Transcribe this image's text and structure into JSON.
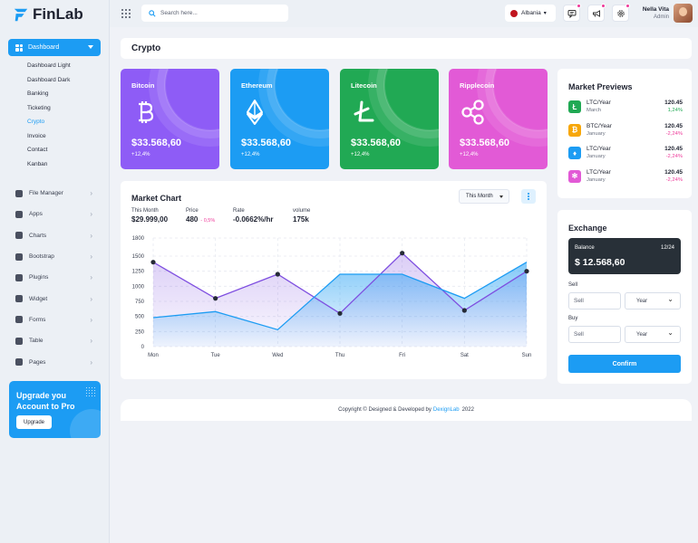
{
  "app": {
    "name": "FinLab"
  },
  "sidebar": {
    "dashboard_label": "Dashboard",
    "sub_items": [
      "Dashboard Light",
      "Dashboard Dark",
      "Banking",
      "Ticketing",
      "Crypto",
      "Invoice",
      "Contact",
      "Kanban"
    ],
    "active_sub_item": "Crypto",
    "menu_items": [
      {
        "label": "File Manager",
        "icon": "folder-icon"
      },
      {
        "label": "Apps",
        "icon": "apps-icon"
      },
      {
        "label": "Charts",
        "icon": "chart-icon"
      },
      {
        "label": "Bootstrap",
        "icon": "heart-icon"
      },
      {
        "label": "Plugins",
        "icon": "puzzle-icon"
      },
      {
        "label": "Widget",
        "icon": "widget-icon"
      },
      {
        "label": "Forms",
        "icon": "forms-icon"
      },
      {
        "label": "Table",
        "icon": "table-icon"
      },
      {
        "label": "Pages",
        "icon": "pages-icon"
      }
    ],
    "upgrade": {
      "title": "Upgrade you Account to Pro",
      "button": "Upgrade"
    }
  },
  "topbar": {
    "search_placeholder": "Search here...",
    "country": "Albania",
    "user_name": "Nella Vita",
    "user_role": "Admin"
  },
  "page_title": "Crypto",
  "colors": {
    "primary": "#1c9cf3",
    "bitcoin": "#8e5cf6",
    "ethereum": "#1c9cf3",
    "litecoin": "#21a954",
    "ripple": "#e25ad6",
    "positive": "#21a954",
    "negative": "#ee3a9a"
  },
  "coins": [
    {
      "name": "Bitcoin",
      "price": "$33.568,60",
      "change": "+12,4%",
      "icon": "bitcoin-icon"
    },
    {
      "name": "Ethereum",
      "price": "$33.568,60",
      "change": "+12,4%",
      "icon": "ethereum-icon"
    },
    {
      "name": "Litecoin",
      "price": "$33.568,60",
      "change": "+12,4%",
      "icon": "litecoin-icon"
    },
    {
      "name": "Ripplecoin",
      "price": "$33.568,60",
      "change": "+12,4%",
      "icon": "ripple-icon"
    }
  ],
  "market_chart": {
    "title": "Market Chart",
    "range": "This Month",
    "stats": [
      {
        "label": "This Month",
        "value": "$29.999,00"
      },
      {
        "label": "Price",
        "value": "480",
        "delta": "- 0,5%"
      },
      {
        "label": "Rate",
        "value": "-0.0662%/hr"
      },
      {
        "label": "volume",
        "value": "175k"
      }
    ]
  },
  "chart_data": {
    "type": "line",
    "categories": [
      "Mon",
      "Tue",
      "Wed",
      "Thu",
      "Fri",
      "Sat",
      "Sun"
    ],
    "series": [
      {
        "values": [
          1400,
          800,
          1200,
          550,
          1550,
          600,
          1250
        ],
        "color": "#7e4ee0",
        "markers": true
      },
      {
        "values": [
          480,
          580,
          280,
          1200,
          1200,
          800,
          1400
        ],
        "color": "#1c9cf3",
        "markers": false
      }
    ],
    "yticks": [
      0,
      250,
      500,
      750,
      1000,
      1250,
      1500,
      1800
    ],
    "ylim": [
      0,
      1800
    ],
    "grid": true
  },
  "market_previews": {
    "title": "Market Previews",
    "rows": [
      {
        "pair": "LTC/Year",
        "period": "March",
        "value": "120.45",
        "change": "1,24%",
        "direction": "up",
        "icon": "litecoin-icon",
        "color": "#21a954"
      },
      {
        "pair": "BTC/Year",
        "period": "January",
        "value": "120.45",
        "change": "-2,24%",
        "direction": "down",
        "icon": "bitcoin-icon",
        "color": "#f7a70a"
      },
      {
        "pair": "LTC/Year",
        "period": "January",
        "value": "120.45",
        "change": "-2,24%",
        "direction": "down",
        "icon": "ethereum-icon",
        "color": "#1c9cf3"
      },
      {
        "pair": "LTC/Year",
        "period": "January",
        "value": "120.45",
        "change": "-2,24%",
        "direction": "down",
        "icon": "ripple-icon",
        "color": "#e25ad6"
      }
    ]
  },
  "exchange": {
    "title": "Exchange",
    "balance_label": "Balance",
    "balance_date": "12/24",
    "balance_value": "$ 12.568,60",
    "sell_label": "Sell",
    "sell_placeholder": "Sell",
    "buy_label": "Buy",
    "buy_placeholder": "Sell",
    "period_option": "Year",
    "confirm": "Confirm"
  },
  "footer": {
    "text": "Copyright © Designed & Developed by",
    "link": "DexignLab",
    "year": "2022"
  }
}
